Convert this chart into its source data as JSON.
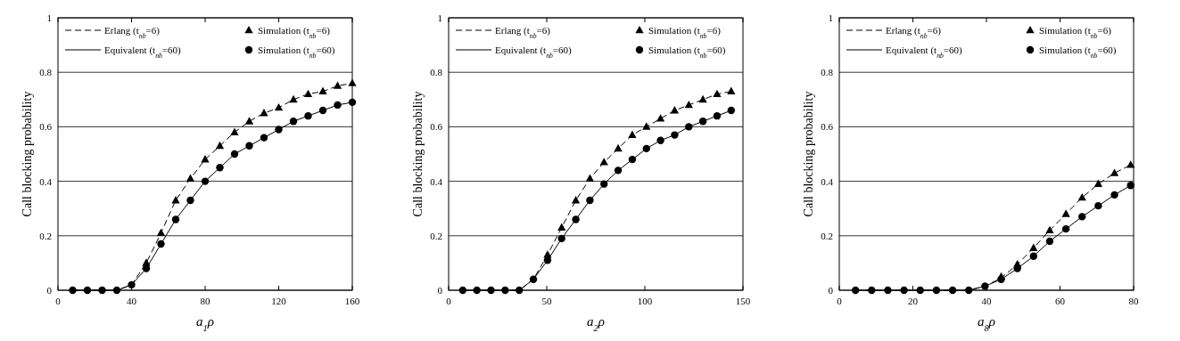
{
  "chart_data": [
    {
      "type": "line",
      "xlabel": "a$_{1}$ρ",
      "ylabel": "Call blocking probability",
      "xlim": [
        0,
        160
      ],
      "xticks": [
        0,
        40,
        80,
        120,
        160
      ],
      "ylim": [
        0,
        1
      ],
      "yticks": [
        0,
        0.2,
        0.4,
        0.6,
        0.8,
        1
      ],
      "grid": "y",
      "legend": "top left",
      "x": [
        8,
        16,
        24,
        32,
        40,
        48,
        56,
        64,
        72,
        80,
        88,
        96,
        104,
        112,
        120,
        128,
        136,
        144,
        152,
        160
      ],
      "series": [
        {
          "name": "Erlang (t$_{nb}$=6)",
          "line_style": "dashed",
          "marker": "none",
          "color": "#000000",
          "values": [
            0,
            0,
            0,
            0,
            0.02,
            0.1,
            0.21,
            0.33,
            0.41,
            0.48,
            0.53,
            0.58,
            0.62,
            0.65,
            0.67,
            0.7,
            0.72,
            0.73,
            0.75,
            0.76
          ]
        },
        {
          "name": "Simulation (t$_{nb}$=6)",
          "type": "scatter",
          "marker": "triangle",
          "color": "#000000",
          "values": [
            null,
            null,
            null,
            null,
            null,
            0.1,
            0.21,
            0.33,
            0.41,
            0.48,
            0.53,
            0.58,
            0.62,
            0.65,
            0.67,
            0.7,
            0.72,
            0.73,
            0.75,
            0.76
          ]
        },
        {
          "name": "Equivalent (t$_{nb}$=60)",
          "line_style": "solid",
          "marker": "none",
          "color": "#000000",
          "values": [
            0,
            0,
            0,
            0,
            0.02,
            0.08,
            0.17,
            0.26,
            0.33,
            0.4,
            0.45,
            0.5,
            0.53,
            0.56,
            0.59,
            0.62,
            0.64,
            0.66,
            0.68,
            0.69
          ]
        },
        {
          "name": "Simulation (t$_{nb}$=60)",
          "type": "scatter",
          "marker": "circle",
          "color": "#000000",
          "values": [
            0,
            0,
            0,
            0,
            0.02,
            0.08,
            0.17,
            0.26,
            0.33,
            0.4,
            0.45,
            0.5,
            0.53,
            0.56,
            0.59,
            0.62,
            0.64,
            0.66,
            0.68,
            0.69
          ]
        }
      ]
    },
    {
      "type": "line",
      "xlabel": "a$_{2}$ρ",
      "ylabel": "Call blocking probability",
      "xlim": [
        0,
        150
      ],
      "xticks": [
        0,
        50,
        100,
        150
      ],
      "ylim": [
        0,
        1
      ],
      "yticks": [
        0,
        0.2,
        0.4,
        0.6,
        0.8,
        1
      ],
      "grid": "y",
      "legend": "top left",
      "x": [
        7.2,
        14.4,
        21.6,
        28.8,
        36,
        43.2,
        50.4,
        57.6,
        64.8,
        72,
        79.2,
        86.4,
        93.6,
        100.8,
        108,
        115.2,
        122.4,
        129.6,
        136.8,
        144
      ],
      "series": [
        {
          "name": "Erlang (t$_{nb}$=6)",
          "line_style": "dashed",
          "marker": "none",
          "color": "#000000",
          "values": [
            0,
            0,
            0,
            0,
            0,
            0.04,
            0.13,
            0.23,
            0.33,
            0.41,
            0.47,
            0.52,
            0.57,
            0.6,
            0.63,
            0.66,
            0.68,
            0.7,
            0.72,
            0.73
          ]
        },
        {
          "name": "Simulation (t$_{nb}$=6)",
          "type": "scatter",
          "marker": "triangle",
          "color": "#000000",
          "values": [
            null,
            null,
            null,
            null,
            null,
            null,
            0.13,
            0.23,
            0.33,
            0.41,
            0.47,
            0.52,
            0.57,
            0.6,
            0.63,
            0.66,
            0.68,
            0.7,
            0.72,
            0.73
          ]
        },
        {
          "name": "Equivalent (t$_{nb}$=60)",
          "line_style": "solid",
          "marker": "none",
          "color": "#000000",
          "values": [
            0,
            0,
            0,
            0,
            0,
            0.04,
            0.11,
            0.19,
            0.26,
            0.33,
            0.39,
            0.44,
            0.48,
            0.52,
            0.55,
            0.57,
            0.6,
            0.62,
            0.64,
            0.66
          ]
        },
        {
          "name": "Simulation (t$_{nb}$=60)",
          "type": "scatter",
          "marker": "circle",
          "color": "#000000",
          "values": [
            0,
            0,
            0,
            0,
            0,
            0.04,
            0.11,
            0.19,
            0.26,
            0.33,
            0.39,
            0.44,
            0.48,
            0.52,
            0.55,
            0.57,
            0.6,
            0.62,
            0.64,
            0.66
          ]
        }
      ]
    },
    {
      "type": "line",
      "xlabel": "a$_{8}$ρ",
      "ylabel": "Call blocking probability",
      "xlim": [
        0,
        80
      ],
      "xticks": [
        0,
        20,
        40,
        60,
        80
      ],
      "ylim": [
        0,
        1
      ],
      "yticks": [
        0,
        0.2,
        0.4,
        0.6,
        0.8,
        1
      ],
      "grid": "y",
      "legend": "top left",
      "x": [
        4.4,
        8.8,
        13.2,
        17.6,
        22,
        26.4,
        30.8,
        35.2,
        39.6,
        44,
        48.4,
        52.8,
        57.2,
        61.6,
        66,
        70.4,
        74.8,
        79.2
      ],
      "series": [
        {
          "name": "Erlang (t$_{nb}$=6)",
          "line_style": "dashed",
          "marker": "none",
          "color": "#000000",
          "values": [
            0,
            0,
            0,
            0,
            0,
            0,
            0,
            0,
            0.015,
            0.045,
            0.095,
            0.155,
            0.22,
            0.28,
            0.34,
            0.39,
            0.43,
            0.46
          ]
        },
        {
          "name": "Simulation (t$_{nb}$=6)",
          "type": "scatter",
          "marker": "triangle",
          "color": "#000000",
          "values": [
            null,
            null,
            null,
            null,
            null,
            null,
            null,
            null,
            null,
            0.05,
            0.095,
            0.155,
            0.22,
            0.28,
            0.34,
            0.39,
            0.43,
            0.46
          ]
        },
        {
          "name": "Equivalent (t$_{nb}$=60)",
          "line_style": "solid",
          "marker": "none",
          "color": "#000000",
          "values": [
            0,
            0,
            0,
            0,
            0,
            0,
            0,
            0,
            0.015,
            0.04,
            0.08,
            0.125,
            0.18,
            0.225,
            0.27,
            0.31,
            0.35,
            0.385
          ]
        },
        {
          "name": "Simulation (t$_{nb}$=60)",
          "type": "scatter",
          "marker": "circle",
          "color": "#000000",
          "values": [
            0,
            0,
            0,
            0,
            0,
            0,
            0,
            0,
            0.015,
            0.04,
            0.08,
            0.125,
            0.18,
            0.225,
            0.27,
            0.31,
            0.35,
            0.385
          ]
        }
      ]
    }
  ]
}
